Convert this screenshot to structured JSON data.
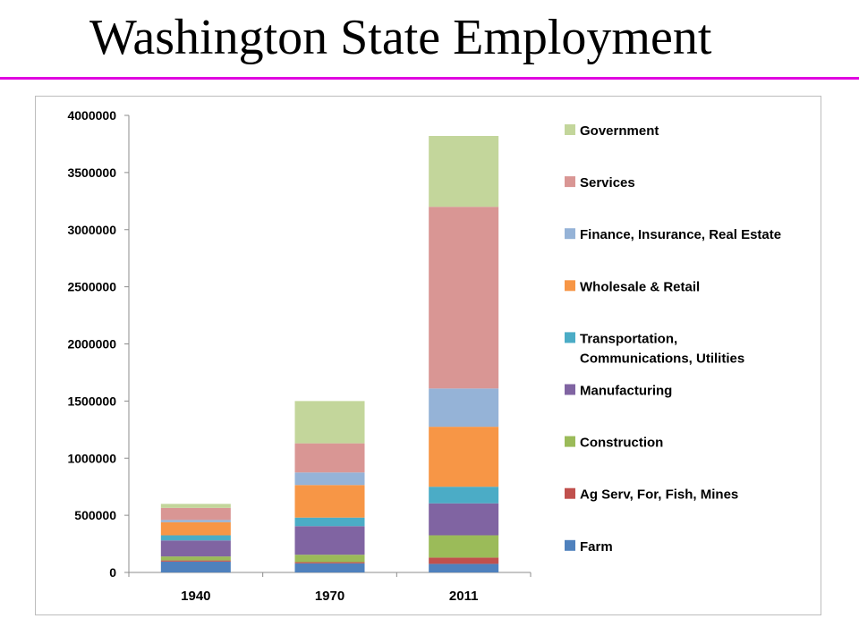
{
  "page": {
    "title": "Washington State Employment"
  },
  "colors": {
    "title_rule": "#e000e0"
  },
  "chart_data": {
    "type": "bar",
    "stacked": true,
    "categories": [
      "1940",
      "1970",
      "2011"
    ],
    "ylim": [
      0,
      4000000
    ],
    "yticks": [
      "0",
      "500000",
      "1000000",
      "1500000",
      "2000000",
      "2500000",
      "3000000",
      "3500000",
      "4000000"
    ],
    "grid": false,
    "legend_position": "right",
    "series": [
      {
        "name": "Farm",
        "color": "#4F81BD",
        "values": [
          95000,
          80000,
          75000
        ]
      },
      {
        "name": "Ag Serv, For, Fish, Mines",
        "color": "#C0504D",
        "values": [
          10000,
          10000,
          55000
        ]
      },
      {
        "name": "Construction",
        "color": "#9BBB59",
        "values": [
          35000,
          65000,
          195000
        ]
      },
      {
        "name": "Manufacturing",
        "color": "#8064A2",
        "values": [
          140000,
          250000,
          280000
        ]
      },
      {
        "name": "Transportation, Communications, Utilities",
        "color": "#4BACC6",
        "values": [
          45000,
          75000,
          145000
        ]
      },
      {
        "name": "Wholesale & Retail",
        "color": "#F79646",
        "values": [
          115000,
          285000,
          525000
        ]
      },
      {
        "name": "Finance, Insurance, Real Estate",
        "color": "#95B3D7",
        "values": [
          20000,
          110000,
          335000
        ]
      },
      {
        "name": "Services",
        "color": "#D99694",
        "values": [
          105000,
          255000,
          1590000
        ]
      },
      {
        "name": "Government",
        "color": "#C3D69B",
        "values": [
          35000,
          370000,
          620000
        ]
      }
    ]
  }
}
